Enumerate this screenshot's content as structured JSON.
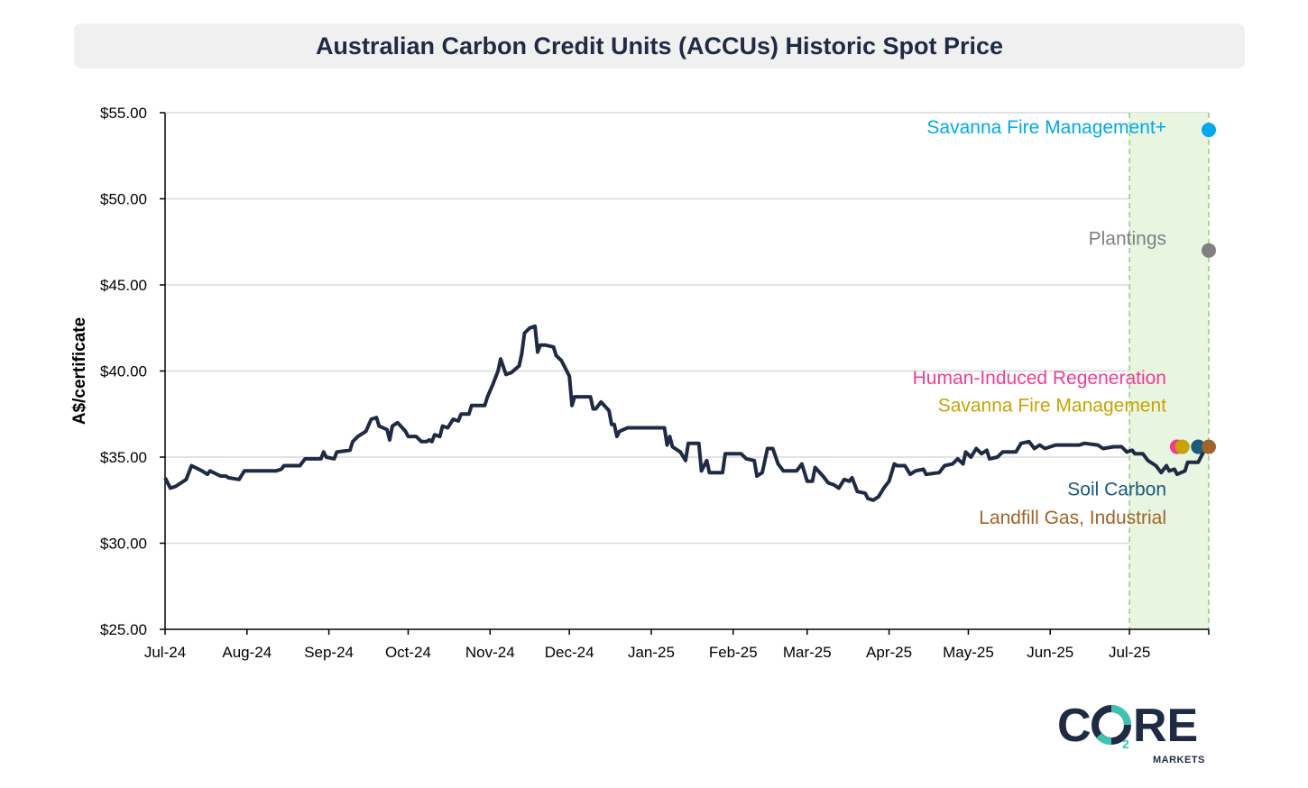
{
  "chart_data": {
    "type": "line",
    "title": "Australian Carbon Credit Units (ACCUs) Historic Spot Price",
    "ylabel": "A$/certificate",
    "xlabel": "",
    "ylim": [
      25,
      55
    ],
    "y_ticks": [
      "$25.00",
      "$30.00",
      "$35.00",
      "$40.00",
      "$45.00",
      "$50.00",
      "$55.00"
    ],
    "x_ticks": [
      {
        "label": "Jul-24",
        "date": "2024-07-01"
      },
      {
        "label": "Aug-24",
        "date": "2024-08-01"
      },
      {
        "label": "Sep-24",
        "date": "2024-09-01"
      },
      {
        "label": "Oct-24",
        "date": "2024-10-01"
      },
      {
        "label": "Nov-24",
        "date": "2024-11-01"
      },
      {
        "label": "Dec-24",
        "date": "2024-12-01"
      },
      {
        "label": "Jan-25",
        "date": "2025-01-01"
      },
      {
        "label": "Feb-25",
        "date": "2025-02-01"
      },
      {
        "label": "Mar-25",
        "date": "2025-03-01"
      },
      {
        "label": "Apr-25",
        "date": "2025-04-01"
      },
      {
        "label": "May-25",
        "date": "2025-05-01"
      },
      {
        "label": "Jun-25",
        "date": "2025-06-01"
      },
      {
        "label": "Jul-25",
        "date": "2025-07-01"
      }
    ],
    "x_range": [
      "2024-07-01",
      "2025-07-31"
    ],
    "highlight_range": [
      "2025-07-01",
      "2025-07-31"
    ],
    "grid": true,
    "series": [
      {
        "color": "#1f2a44",
        "points": [
          [
            "2024-07-01",
            33.8
          ],
          [
            "2024-07-03",
            33.2
          ],
          [
            "2024-07-05",
            33.3
          ],
          [
            "2024-07-09",
            33.7
          ],
          [
            "2024-07-11",
            34.5
          ],
          [
            "2024-07-15",
            34.2
          ],
          [
            "2024-07-17",
            34.0
          ],
          [
            "2024-07-18",
            34.2
          ],
          [
            "2024-07-22",
            33.9
          ],
          [
            "2024-07-24",
            33.9
          ],
          [
            "2024-07-25",
            33.8
          ],
          [
            "2024-07-29",
            33.7
          ],
          [
            "2024-07-31",
            34.2
          ],
          [
            "2024-08-05",
            34.2
          ],
          [
            "2024-08-12",
            34.2
          ],
          [
            "2024-08-14",
            34.3
          ],
          [
            "2024-08-15",
            34.5
          ],
          [
            "2024-08-21",
            34.5
          ],
          [
            "2024-08-23",
            34.9
          ],
          [
            "2024-08-29",
            34.9
          ],
          [
            "2024-08-30",
            35.3
          ],
          [
            "2024-08-31",
            35.0
          ],
          [
            "2024-09-03",
            34.9
          ],
          [
            "2024-09-04",
            35.3
          ],
          [
            "2024-09-09",
            35.4
          ],
          [
            "2024-09-10",
            35.9
          ],
          [
            "2024-09-12",
            36.2
          ],
          [
            "2024-09-15",
            36.5
          ],
          [
            "2024-09-17",
            37.2
          ],
          [
            "2024-09-19",
            37.3
          ],
          [
            "2024-09-20",
            36.8
          ],
          [
            "2024-09-23",
            36.6
          ],
          [
            "2024-09-24",
            36.0
          ],
          [
            "2024-09-25",
            36.8
          ],
          [
            "2024-09-27",
            37.0
          ],
          [
            "2024-09-30",
            36.5
          ],
          [
            "2024-10-01",
            36.2
          ],
          [
            "2024-10-04",
            36.2
          ],
          [
            "2024-10-06",
            35.9
          ],
          [
            "2024-10-08",
            35.9
          ],
          [
            "2024-10-09",
            36.0
          ],
          [
            "2024-10-10",
            35.9
          ],
          [
            "2024-10-11",
            36.3
          ],
          [
            "2024-10-13",
            36.2
          ],
          [
            "2024-10-14",
            36.8
          ],
          [
            "2024-10-16",
            36.7
          ],
          [
            "2024-10-18",
            37.2
          ],
          [
            "2024-10-20",
            37.1
          ],
          [
            "2024-10-21",
            37.5
          ],
          [
            "2024-10-24",
            37.5
          ],
          [
            "2024-10-25",
            38.0
          ],
          [
            "2024-10-30",
            38.0
          ],
          [
            "2024-10-31",
            38.5
          ],
          [
            "2024-11-02",
            39.2
          ],
          [
            "2024-11-04",
            40.0
          ],
          [
            "2024-11-05",
            40.7
          ],
          [
            "2024-11-07",
            39.8
          ],
          [
            "2024-11-09",
            39.9
          ],
          [
            "2024-11-12",
            40.3
          ],
          [
            "2024-11-13",
            41.0
          ],
          [
            "2024-11-14",
            42.2
          ],
          [
            "2024-11-16",
            42.5
          ],
          [
            "2024-11-18",
            42.6
          ],
          [
            "2024-11-19",
            41.1
          ],
          [
            "2024-11-20",
            41.5
          ],
          [
            "2024-11-22",
            41.5
          ],
          [
            "2024-11-25",
            41.4
          ],
          [
            "2024-11-26",
            40.9
          ],
          [
            "2024-11-28",
            40.6
          ],
          [
            "2024-12-01",
            39.7
          ],
          [
            "2024-12-02",
            38.0
          ],
          [
            "2024-12-03",
            38.5
          ],
          [
            "2024-12-09",
            38.5
          ],
          [
            "2024-12-10",
            37.8
          ],
          [
            "2024-12-11",
            37.8
          ],
          [
            "2024-12-13",
            38.2
          ],
          [
            "2024-12-16",
            37.7
          ],
          [
            "2024-12-17",
            36.9
          ],
          [
            "2024-12-18",
            36.9
          ],
          [
            "2024-12-19",
            36.2
          ],
          [
            "2024-12-20",
            36.5
          ],
          [
            "2024-12-23",
            36.7
          ],
          [
            "2025-01-06",
            36.7
          ],
          [
            "2025-01-07",
            35.7
          ],
          [
            "2025-01-08",
            36.2
          ],
          [
            "2025-01-09",
            35.6
          ],
          [
            "2025-01-12",
            35.3
          ],
          [
            "2025-01-14",
            34.8
          ],
          [
            "2025-01-15",
            35.8
          ],
          [
            "2025-01-19",
            35.8
          ],
          [
            "2025-01-20",
            34.2
          ],
          [
            "2025-01-22",
            34.8
          ],
          [
            "2025-01-23",
            34.1
          ],
          [
            "2025-01-28",
            34.1
          ],
          [
            "2025-01-29",
            35.2
          ],
          [
            "2025-02-04",
            35.2
          ],
          [
            "2025-02-06",
            34.9
          ],
          [
            "2025-02-09",
            34.8
          ],
          [
            "2025-02-10",
            33.9
          ],
          [
            "2025-02-12",
            34.1
          ],
          [
            "2025-02-14",
            35.5
          ],
          [
            "2025-02-16",
            35.5
          ],
          [
            "2025-02-18",
            34.6
          ],
          [
            "2025-02-20",
            34.2
          ],
          [
            "2025-02-25",
            34.2
          ],
          [
            "2025-02-27",
            34.6
          ],
          [
            "2025-03-01",
            33.6
          ],
          [
            "2025-03-03",
            33.6
          ],
          [
            "2025-03-04",
            34.4
          ],
          [
            "2025-03-07",
            33.9
          ],
          [
            "2025-03-09",
            33.5
          ],
          [
            "2025-03-11",
            33.4
          ],
          [
            "2025-03-13",
            33.2
          ],
          [
            "2025-03-15",
            33.7
          ],
          [
            "2025-03-17",
            33.6
          ],
          [
            "2025-03-18",
            33.8
          ],
          [
            "2025-03-20",
            33.0
          ],
          [
            "2025-03-23",
            32.9
          ],
          [
            "2025-03-24",
            32.6
          ],
          [
            "2025-03-26",
            32.5
          ],
          [
            "2025-03-28",
            32.7
          ],
          [
            "2025-03-30",
            33.2
          ],
          [
            "2025-04-01",
            33.6
          ],
          [
            "2025-04-03",
            34.6
          ],
          [
            "2025-04-04",
            34.5
          ],
          [
            "2025-04-07",
            34.5
          ],
          [
            "2025-04-09",
            34.0
          ],
          [
            "2025-04-11",
            34.2
          ],
          [
            "2025-04-14",
            34.3
          ],
          [
            "2025-04-15",
            34.0
          ],
          [
            "2025-04-20",
            34.1
          ],
          [
            "2025-04-22",
            34.5
          ],
          [
            "2025-04-25",
            34.6
          ],
          [
            "2025-04-27",
            34.9
          ],
          [
            "2025-04-29",
            34.6
          ],
          [
            "2025-04-30",
            35.3
          ],
          [
            "2025-05-02",
            35.0
          ],
          [
            "2025-05-04",
            35.5
          ],
          [
            "2025-05-06",
            35.2
          ],
          [
            "2025-05-08",
            35.4
          ],
          [
            "2025-05-09",
            34.9
          ],
          [
            "2025-05-12",
            35.0
          ],
          [
            "2025-05-14",
            35.3
          ],
          [
            "2025-05-19",
            35.3
          ],
          [
            "2025-05-21",
            35.8
          ],
          [
            "2025-05-24",
            35.9
          ],
          [
            "2025-05-26",
            35.5
          ],
          [
            "2025-05-28",
            35.7
          ],
          [
            "2025-05-30",
            35.5
          ],
          [
            "2025-06-03",
            35.7
          ],
          [
            "2025-06-12",
            35.7
          ],
          [
            "2025-06-14",
            35.8
          ],
          [
            "2025-06-19",
            35.7
          ],
          [
            "2025-06-21",
            35.5
          ],
          [
            "2025-06-25",
            35.6
          ],
          [
            "2025-06-28",
            35.6
          ],
          [
            "2025-06-30",
            35.3
          ],
          [
            "2025-07-02",
            35.4
          ],
          [
            "2025-07-03",
            35.2
          ],
          [
            "2025-07-06",
            35.2
          ],
          [
            "2025-07-08",
            34.8
          ],
          [
            "2025-07-11",
            34.5
          ],
          [
            "2025-07-13",
            34.1
          ],
          [
            "2025-07-15",
            34.5
          ],
          [
            "2025-07-16",
            34.2
          ],
          [
            "2025-07-18",
            34.3
          ],
          [
            "2025-07-19",
            34.0
          ],
          [
            "2025-07-22",
            34.2
          ],
          [
            "2025-07-23",
            34.7
          ],
          [
            "2025-07-27",
            34.7
          ],
          [
            "2025-07-29",
            35.3
          ],
          [
            "2025-07-30",
            35.6
          ]
        ]
      }
    ],
    "markers": [
      {
        "label": "Savanna Fire Management+",
        "value": 54.0,
        "date": "2025-07-31",
        "color": "#00a9f0",
        "label_value": 54.15
      },
      {
        "label": "Plantings",
        "value": 47.0,
        "date": "2025-07-31",
        "color": "#808080",
        "label_value": 47.7
      },
      {
        "label": "Human-Induced Regeneration",
        "value": 35.6,
        "date": "2025-07-19",
        "color": "#f03c96",
        "label_value": 39.6
      },
      {
        "label": "Savanna Fire Management",
        "value": 35.6,
        "date": "2025-07-21",
        "color": "#c8a400",
        "label_value": 38.0
      },
      {
        "label": "Soil Carbon",
        "value": 35.6,
        "date": "2025-07-27",
        "color": "#1a5a7a",
        "label_value": 33.15
      },
      {
        "label": "Landfill Gas, Industrial",
        "value": 35.6,
        "date": "2025-07-31",
        "color": "#a0642a",
        "label_value": 31.5
      }
    ]
  },
  "logo": {
    "word": "C2RE",
    "sub": "MARKETS",
    "colors": {
      "dark": "#1f2a44",
      "ring": "#3fc3b0"
    }
  }
}
